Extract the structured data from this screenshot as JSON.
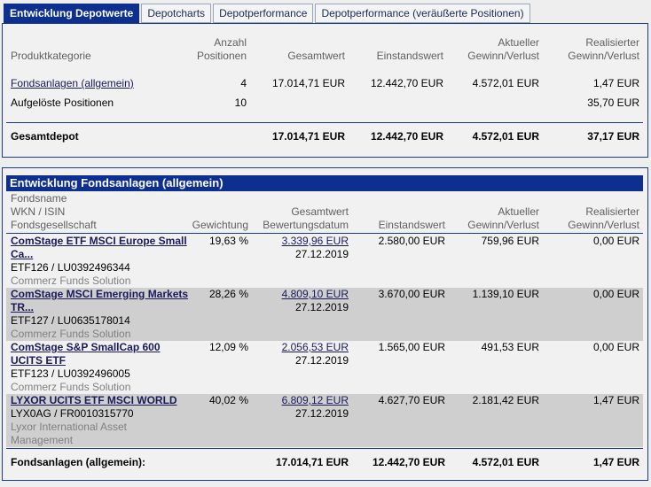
{
  "tabs": [
    "Entwicklung Depotwerte",
    "Depotcharts",
    "Depotperformance",
    "Depotperformance (veräußerte Positionen)"
  ],
  "overview": {
    "headers": {
      "kategorie": "Produktkategorie",
      "anzahl1": "Anzahl",
      "anzahl2": "Positionen",
      "gesamtwert": "Gesamtwert",
      "einstandswert": "Einstandswert",
      "aktuell1": "Aktueller",
      "aktuell2": "Gewinn/Verlust",
      "real1": "Realisierter",
      "real2": "Gewinn/Verlust"
    },
    "rows": [
      {
        "kategorie": "Fondsanlagen (allgemein)",
        "anzahl": "4",
        "gesamtwert": "17.014,71 EUR",
        "einstandswert": "12.442,70 EUR",
        "aktuell": "4.572,01 EUR",
        "realisiert": "1,47 EUR"
      },
      {
        "kategorie": "Aufgelöste Positionen",
        "anzahl": "10",
        "gesamtwert": "",
        "einstandswert": "",
        "aktuell": "",
        "realisiert": "35,70 EUR"
      }
    ],
    "total": {
      "label": "Gesamtdepot",
      "gesamtwert": "17.014,71 EUR",
      "einstandswert": "12.442,70 EUR",
      "aktuell": "4.572,01 EUR",
      "realisiert": "37,17 EUR"
    }
  },
  "funds": {
    "title": "Entwicklung Fondsanlagen (allgemein)",
    "headers": {
      "name": "Fondsname",
      "wkn": "WKN / ISIN",
      "gesellschaft": "Fondsgesellschaft",
      "gewichtung": "Gewichtung",
      "gesamt1": "Gesamtwert",
      "gesamt2": "Bewertungsdatum",
      "einstand": "Einstandswert",
      "aktuell1": "Aktueller",
      "aktuell2": "Gewinn/Verlust",
      "real1": "Realisierter",
      "real2": "Gewinn/Verlust"
    },
    "rows": [
      {
        "name1": "ComStage ETF MSCI Europe Small",
        "name2": "Ca...",
        "wkn": "ETF126 /  LU0392496344",
        "gesellschaft1": "Commerz Funds Solution",
        "gesellschaft2": "",
        "gewichtung": "19,63 %",
        "gesamtwert": "3.339,96 EUR",
        "datum": "27.12.2019",
        "einstand": "2.580,00 EUR",
        "aktuell": "759,96 EUR",
        "realisiert": "0,00 EUR"
      },
      {
        "name1": "ComStage MSCI Emerging Markets",
        "name2": "TR...",
        "wkn": "ETF127 /  LU0635178014",
        "gesellschaft1": "Commerz Funds Solution",
        "gesellschaft2": "",
        "gewichtung": "28,26 %",
        "gesamtwert": "4.809,10 EUR",
        "datum": "27.12.2019",
        "einstand": "3.670,00 EUR",
        "aktuell": "1.139,10 EUR",
        "realisiert": "0,00 EUR"
      },
      {
        "name1": "ComStage S&P SmallCap 600",
        "name2": "UCITS ETF",
        "wkn": "ETF123 /  LU0392496005",
        "gesellschaft1": "Commerz Funds Solution",
        "gesellschaft2": "",
        "gewichtung": "12,09 %",
        "gesamtwert": "2.056,53 EUR",
        "datum": "27.12.2019",
        "einstand": "1.565,00 EUR",
        "aktuell": "491,53 EUR",
        "realisiert": "0,00 EUR"
      },
      {
        "name1": "LYXOR UCITS ETF MSCI WORLD",
        "name2": "",
        "wkn": "LYX0AG /  FR0010315770",
        "gesellschaft1": "Lyxor International Asset",
        "gesellschaft2": "Management",
        "gewichtung": "40,02 %",
        "gesamtwert": "6.809,12 EUR",
        "datum": "27.12.2019",
        "einstand": "4.627,70 EUR",
        "aktuell": "2.181,42 EUR",
        "realisiert": "1,47 EUR"
      }
    ],
    "total": {
      "label": "Fondsanlagen (allgemein):",
      "gesamtwert": "17.014,71 EUR",
      "einstand": "12.442,70 EUR",
      "aktuell": "4.572,01 EUR",
      "realisiert": "1,47 EUR"
    }
  }
}
